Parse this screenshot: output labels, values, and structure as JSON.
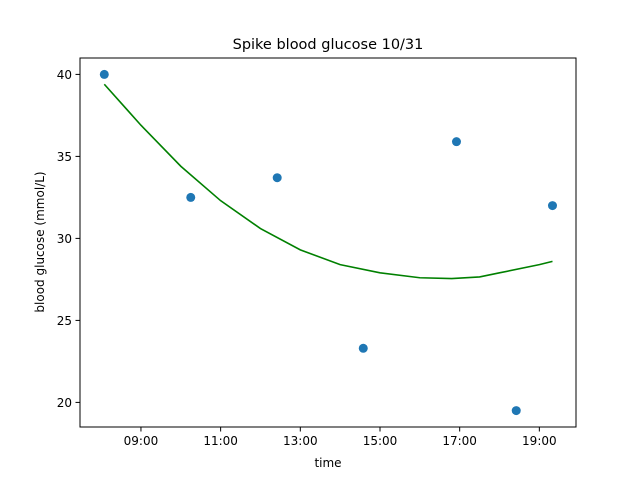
{
  "chart_data": {
    "type": "scatter",
    "title": "Spike blood glucose 10/31",
    "xlabel": "time",
    "ylabel": "blood glucose (mmol/L)",
    "x_unit": "hours",
    "xlim": [
      7.47,
      19.92
    ],
    "ylim": [
      18.5,
      41.0
    ],
    "xticks": [
      9,
      11,
      13,
      15,
      17,
      19
    ],
    "xtick_labels": [
      "09:00",
      "11:00",
      "13:00",
      "15:00",
      "17:00",
      "19:00"
    ],
    "yticks": [
      20,
      25,
      30,
      35,
      40
    ],
    "ytick_labels": [
      "20",
      "25",
      "30",
      "35",
      "40"
    ],
    "grid": false,
    "series": [
      {
        "kind": "scatter",
        "color": "#1f77b4",
        "x": [
          8.08,
          10.25,
          12.42,
          14.58,
          16.92,
          18.42,
          19.33
        ],
        "y": [
          40.0,
          32.5,
          33.7,
          23.3,
          35.9,
          19.5,
          32.0
        ]
      },
      {
        "kind": "fit",
        "color": "#008000",
        "x": [
          8.08,
          9.0,
          10.0,
          11.0,
          12.0,
          13.0,
          14.0,
          15.0,
          16.0,
          16.8,
          17.5,
          18.0,
          19.0,
          19.33
        ],
        "y": [
          39.4,
          36.9,
          34.4,
          32.3,
          30.6,
          29.3,
          28.4,
          27.9,
          27.6,
          27.55,
          27.65,
          27.9,
          28.4,
          28.6
        ]
      }
    ]
  }
}
